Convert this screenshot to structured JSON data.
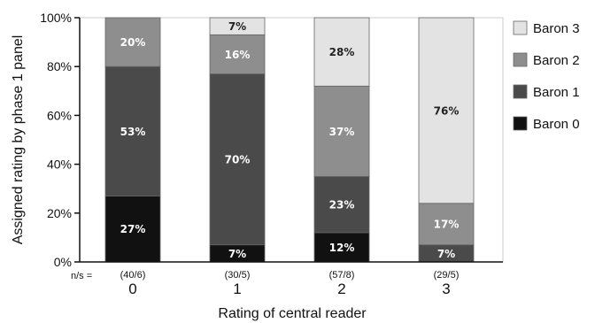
{
  "chart_data": {
    "type": "bar",
    "stacked": true,
    "ylabel": "Assigned  rating  by  phase 1  panel",
    "xlabel": "Rating  of  central  reader",
    "ylim": [
      0,
      100
    ],
    "yticks": [
      "0%",
      "20%",
      "40%",
      "60%",
      "80%",
      "100%"
    ],
    "ytick_values": [
      0,
      20,
      40,
      60,
      80,
      100
    ],
    "grid": false,
    "legend_position": "right",
    "categories": [
      "0",
      "1",
      "2",
      "3"
    ],
    "ns_prefix": "n/s =",
    "ns_labels": [
      "(40/6)",
      "(30/5)",
      "(57/8)",
      "(29/5)"
    ],
    "series": [
      {
        "name": "Baron 0",
        "color": "#111111",
        "label_color": "#ffffff",
        "values": [
          27,
          7,
          12,
          0
        ],
        "labels": [
          "27%",
          "7%",
          "12%",
          ""
        ]
      },
      {
        "name": "Baron 1",
        "color": "#4a4a4a",
        "label_color": "#ffffff",
        "values": [
          53,
          70,
          23,
          7
        ],
        "labels": [
          "53%",
          "70%",
          "23%",
          "7%"
        ]
      },
      {
        "name": "Baron 2",
        "color": "#8e8e8e",
        "label_color": "#ffffff",
        "values": [
          20,
          16,
          37,
          17
        ],
        "labels": [
          "20%",
          "16%",
          "37%",
          "17%"
        ]
      },
      {
        "name": "Baron 3",
        "color": "#e3e3e3",
        "label_color": "#222222",
        "values": [
          0,
          7,
          28,
          76
        ],
        "labels": [
          "",
          "7%",
          "28%",
          "76%"
        ]
      }
    ],
    "legend_order": [
      "Baron 3",
      "Baron 2",
      "Baron 1",
      "Baron 0"
    ]
  }
}
